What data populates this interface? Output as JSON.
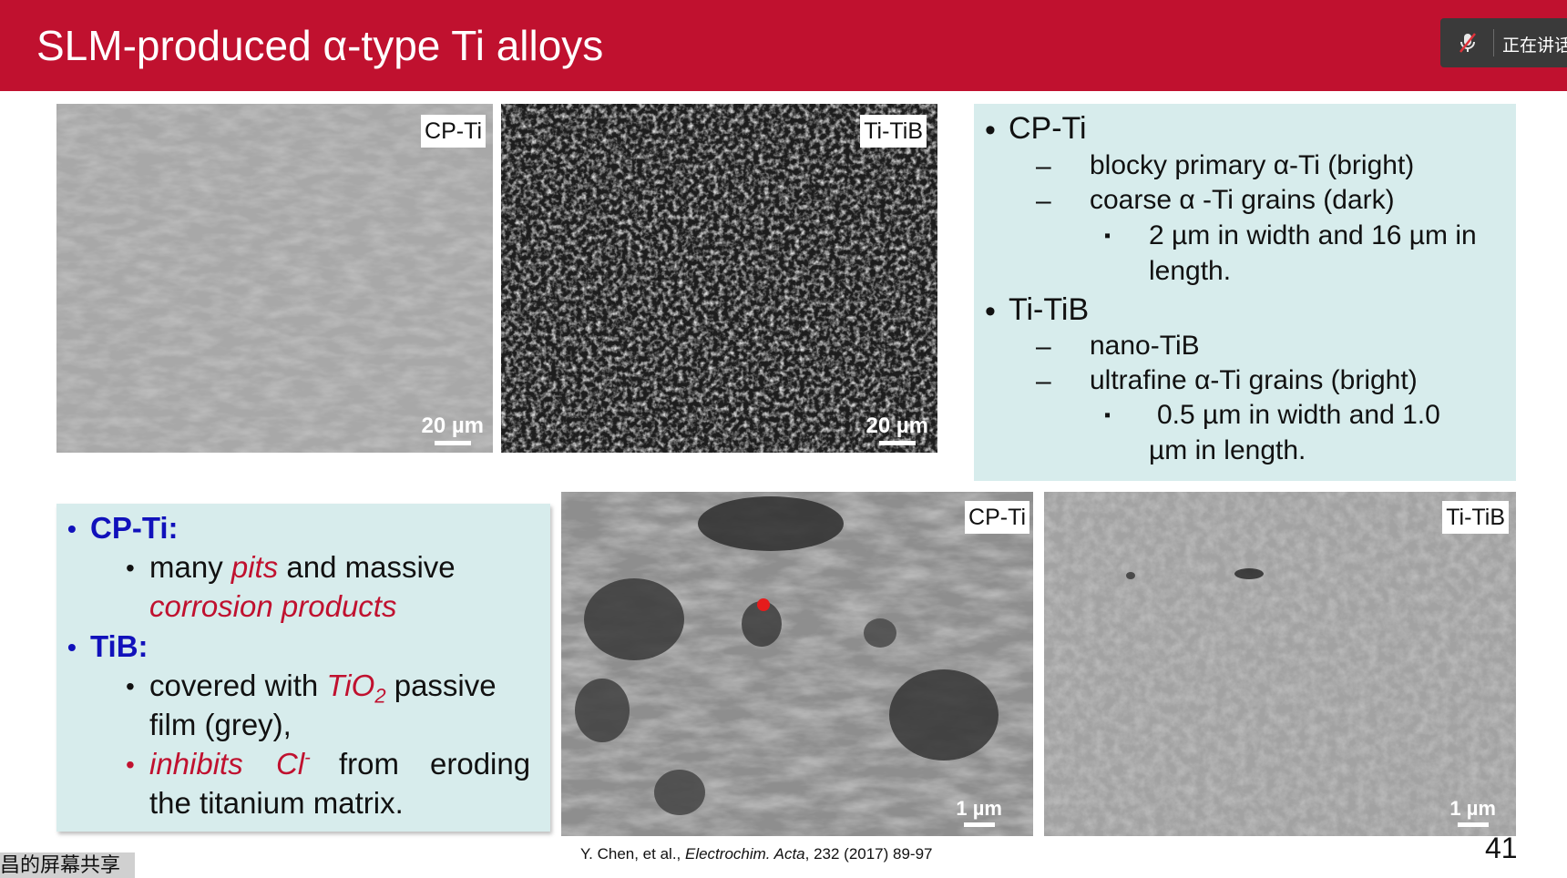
{
  "slide": {
    "title": "SLM-produced α-type Ti alloys",
    "page_number": "41",
    "citation_pre": "Y. Chen, et al., ",
    "citation_journal": "Electrochim. Acta",
    "citation_post": ", 232 (2017) 89-97"
  },
  "meeting": {
    "speaker_status": "正在讲话",
    "share_label": "昌的屏幕共享",
    "icon": "muted-mic-icon"
  },
  "images": {
    "top_left": {
      "label": "CP-Ti",
      "scale": "20 µm"
    },
    "top_right": {
      "label": "Ti-TiB",
      "scale": "20 µm"
    },
    "bottom_left": {
      "label": "CP-Ti",
      "scale": "1 µm"
    },
    "bottom_right": {
      "label": "Ti-TiB",
      "scale": "1 µm"
    }
  },
  "right_box": {
    "item1": "CP-Ti",
    "item1_sub1": "blocky primary α-Ti (bright)",
    "item1_sub2": "coarse α -Ti grains (dark)",
    "item1_sub3_line1": "2 µm in width and 16 µm in",
    "item1_sub3_line2": "length.",
    "item2": "Ti-TiB",
    "item2_sub1": "nano-TiB",
    "item2_sub2": "ultrafine α-Ti grains (bright)",
    "item2_sub3_line1": "0.5 µm in width and 1.0",
    "item2_sub3_line2": "µm in length.",
    "bullet": "•",
    "dash": "–",
    "square": "▪"
  },
  "left_box": {
    "h1": "CP-Ti:",
    "l1_a": "many ",
    "l1_b": "pits",
    "l1_c": " and massive",
    "l2": "corrosion products",
    "h2": "TiB:",
    "l3_a": "covered with ",
    "l3_b": "TiO",
    "l3_sub": "2",
    "l3_c": " passive",
    "l4": "film (grey),",
    "l5_a": "inhibits",
    "l5_b": "Cl",
    "l5_sup": "-",
    "l5_c": "from",
    "l5_d": "eroding",
    "l6": "the titanium matrix.",
    "bullet": "•"
  },
  "colors": {
    "title_bar": "#c0112f",
    "box_bg": "#d7ecec",
    "emphasis_red": "#c0112f",
    "heading_blue": "#1111bb"
  }
}
